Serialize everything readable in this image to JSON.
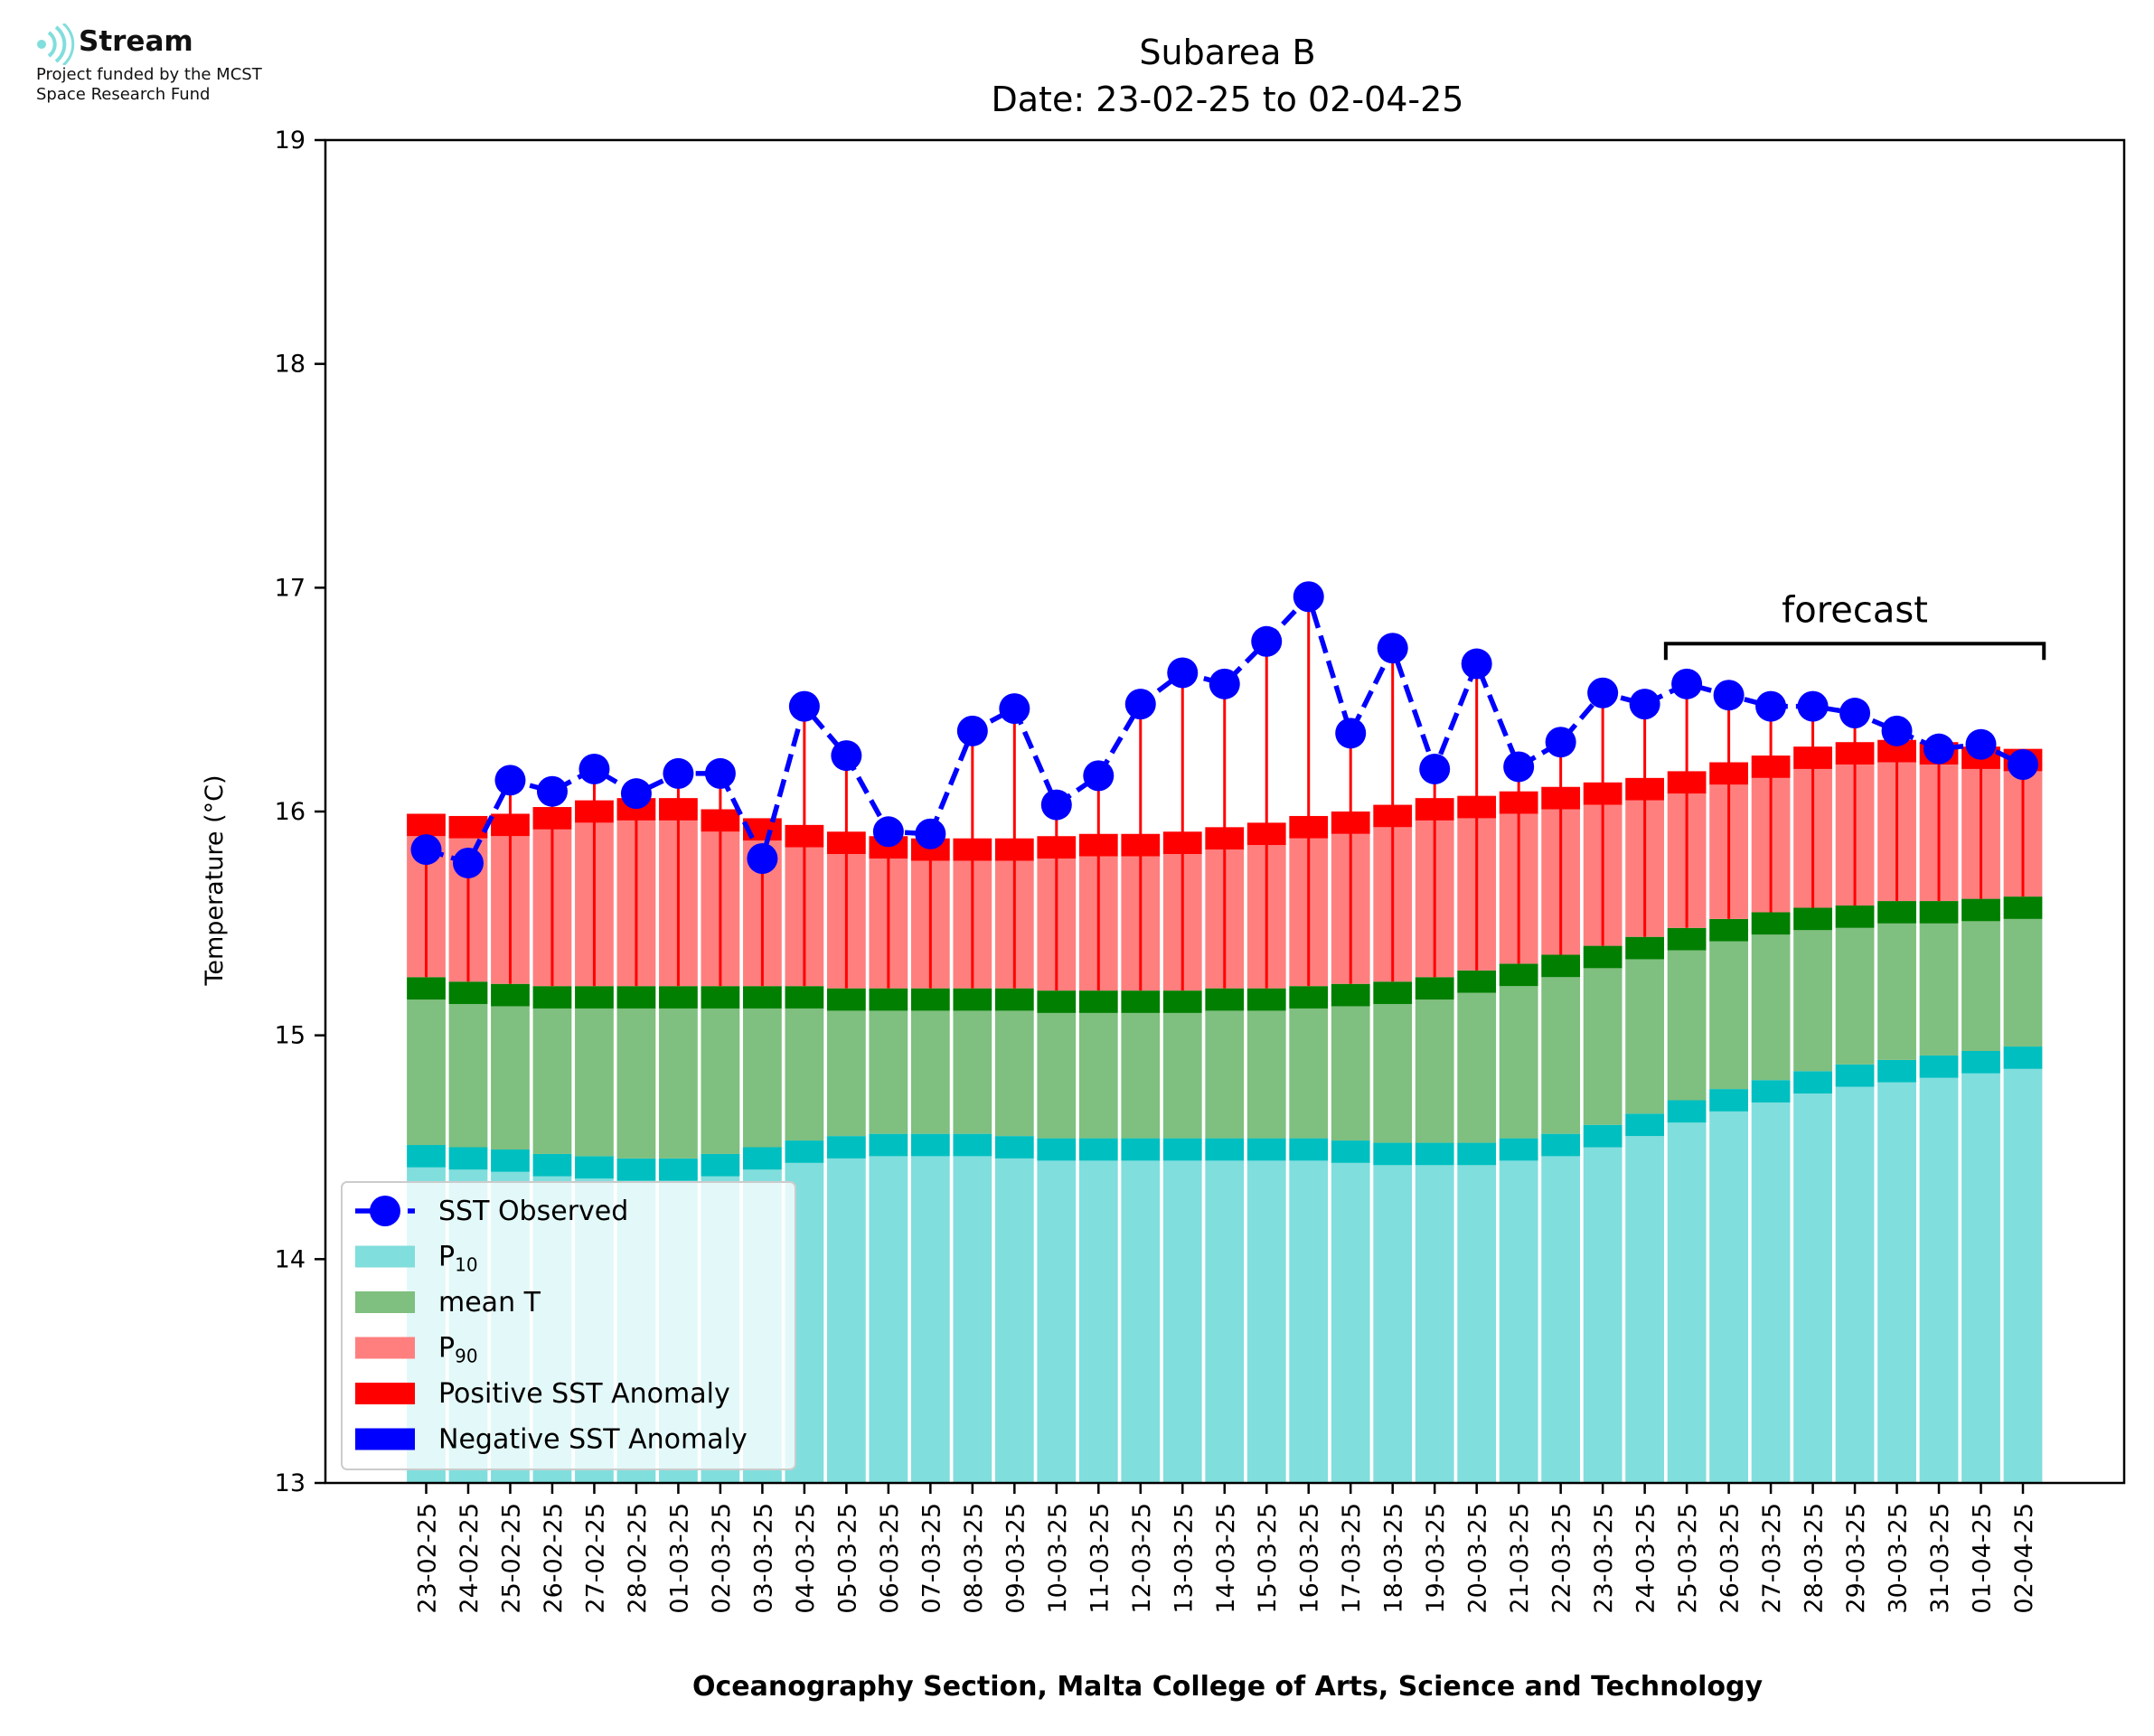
{
  "logo": {
    "title": "Stream",
    "subtitle_line1": "Project funded by the MCST",
    "subtitle_line2": "Space Research Fund",
    "icon": "stream-waves-icon"
  },
  "colors": {
    "p10": "#80dedd",
    "p10_dark": "#00bfc0",
    "mean": "#7fbf7f",
    "mean_dark": "#007f00",
    "p90": "#ff7f7f",
    "p90_dark": "#ff0000",
    "observed": "#0000ff",
    "neg_anomaly": "#0000ff"
  },
  "chart_data": {
    "type": "bar",
    "title": "Subarea B",
    "subtitle": "Date: 23-02-25 to 02-04-25",
    "xlabel": "Oceanography Section, Malta College of Arts, Science and Technology",
    "ylabel": "Temperature (°C)",
    "ylim": [
      13,
      19
    ],
    "yticks": [
      13,
      14,
      15,
      16,
      17,
      18,
      19
    ],
    "grid": false,
    "legend_position": "lower-left",
    "annotation": "forecast",
    "forecast_start_category": "25-03-25",
    "categories": [
      "23-02-25",
      "24-02-25",
      "25-02-25",
      "26-02-25",
      "27-02-25",
      "28-02-25",
      "01-03-25",
      "02-03-25",
      "03-03-25",
      "04-03-25",
      "05-03-25",
      "06-03-25",
      "07-03-25",
      "08-03-25",
      "09-03-25",
      "10-03-25",
      "11-03-25",
      "12-03-25",
      "13-03-25",
      "14-03-25",
      "15-03-25",
      "16-03-25",
      "17-03-25",
      "18-03-25",
      "19-03-25",
      "20-03-25",
      "21-03-25",
      "22-03-25",
      "23-03-25",
      "24-03-25",
      "25-03-25",
      "26-03-25",
      "27-03-25",
      "28-03-25",
      "29-03-25",
      "30-03-25",
      "31-03-25",
      "01-04-25",
      "02-04-25"
    ],
    "series": [
      {
        "name": "P10",
        "values": [
          14.51,
          14.5,
          14.49,
          14.47,
          14.46,
          14.45,
          14.45,
          14.47,
          14.5,
          14.53,
          14.55,
          14.56,
          14.56,
          14.56,
          14.55,
          14.54,
          14.54,
          14.54,
          14.54,
          14.54,
          14.54,
          14.54,
          14.53,
          14.52,
          14.52,
          14.52,
          14.54,
          14.56,
          14.6,
          14.65,
          14.71,
          14.76,
          14.8,
          14.84,
          14.87,
          14.89,
          14.91,
          14.93,
          14.95
        ]
      },
      {
        "name": "mean T",
        "values": [
          15.26,
          15.24,
          15.23,
          15.22,
          15.22,
          15.22,
          15.22,
          15.22,
          15.22,
          15.22,
          15.21,
          15.21,
          15.21,
          15.21,
          15.21,
          15.2,
          15.2,
          15.2,
          15.2,
          15.21,
          15.21,
          15.22,
          15.23,
          15.24,
          15.26,
          15.29,
          15.32,
          15.36,
          15.4,
          15.44,
          15.48,
          15.52,
          15.55,
          15.57,
          15.58,
          15.6,
          15.6,
          15.61,
          15.62
        ]
      },
      {
        "name": "P90",
        "values": [
          15.99,
          15.98,
          15.99,
          16.02,
          16.05,
          16.06,
          16.06,
          16.01,
          15.97,
          15.94,
          15.91,
          15.89,
          15.88,
          15.88,
          15.88,
          15.89,
          15.9,
          15.9,
          15.91,
          15.93,
          15.95,
          15.98,
          16.0,
          16.03,
          16.06,
          16.07,
          16.09,
          16.11,
          16.13,
          16.15,
          16.18,
          16.22,
          16.25,
          16.29,
          16.31,
          16.32,
          16.31,
          16.29,
          16.28
        ]
      },
      {
        "name": "SST Observed",
        "values": [
          15.83,
          15.77,
          16.14,
          16.09,
          16.19,
          16.08,
          16.17,
          16.17,
          15.79,
          16.47,
          16.25,
          15.91,
          15.9,
          16.36,
          16.46,
          16.03,
          16.16,
          16.48,
          16.62,
          16.57,
          16.76,
          16.96,
          16.35,
          16.73,
          16.19,
          16.66,
          16.2,
          16.31,
          16.53,
          16.48,
          16.57,
          16.52,
          16.47,
          16.47,
          16.44,
          16.36,
          16.28,
          16.3,
          16.21
        ]
      }
    ],
    "legend": [
      "SST Observed",
      "P10",
      "mean T",
      "P90",
      "Positive SST Anomaly",
      "Negative SST Anomaly"
    ]
  }
}
